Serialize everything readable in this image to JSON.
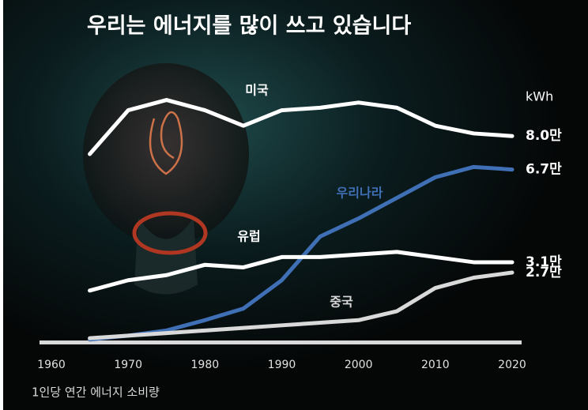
{
  "chart_data": {
    "type": "line",
    "title": "우리는 에너지를 많이 쓰고 있습니다",
    "unit": "kWh",
    "note": "1인당 연간 에너지 소비량",
    "x": [
      1965,
      1970,
      1975,
      1980,
      1985,
      1990,
      1995,
      2000,
      2005,
      2010,
      2015,
      2020
    ],
    "xlim": [
      1960,
      2020
    ],
    "xticks": [
      1960,
      1970,
      1980,
      1990,
      2000,
      2010,
      2020
    ],
    "ylim": [
      0,
      10
    ],
    "series": [
      {
        "name": "미국",
        "color": "#ffffff",
        "values": [
          7.3,
          9.0,
          9.4,
          9.0,
          8.4,
          9.0,
          9.1,
          9.3,
          9.1,
          8.4,
          8.1,
          8.0
        ],
        "value_labels": [
          null,
          null,
          null,
          null,
          null,
          null,
          null,
          null,
          null,
          null,
          null,
          "8.0만"
        ]
      },
      {
        "name": "우리나라",
        "color": "#3f6fb5",
        "values": [
          0.1,
          0.25,
          0.45,
          0.85,
          1.3,
          2.4,
          4.1,
          4.8,
          5.6,
          6.4,
          6.8,
          6.7
        ],
        "value_labels": [
          null,
          null,
          null,
          null,
          null,
          null,
          null,
          null,
          null,
          null,
          null,
          "6.7만"
        ]
      },
      {
        "name": "유럽",
        "color": "#ffffff",
        "values": [
          2.0,
          2.4,
          2.6,
          3.0,
          2.9,
          3.3,
          3.3,
          3.4,
          3.5,
          3.3,
          3.1,
          3.1
        ],
        "value_labels": [
          null,
          null,
          null,
          null,
          null,
          null,
          null,
          null,
          null,
          null,
          null,
          "3.1만"
        ]
      },
      {
        "name": "중국",
        "color": "#d9d9d9",
        "values": [
          0.15,
          0.25,
          0.35,
          0.45,
          0.55,
          0.65,
          0.75,
          0.85,
          1.2,
          2.1,
          2.5,
          2.7
        ],
        "value_labels": [
          null,
          null,
          null,
          null,
          null,
          null,
          null,
          null,
          null,
          null,
          null,
          "2.7만"
        ]
      }
    ]
  }
}
